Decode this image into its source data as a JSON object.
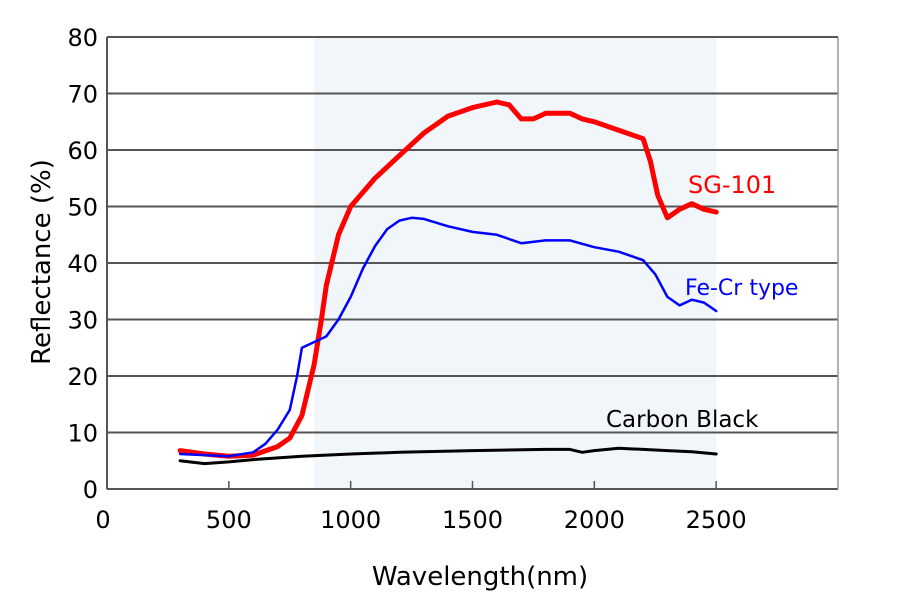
{
  "chart_data": {
    "type": "line",
    "title": "",
    "xlabel": "Wavelength(nm)",
    "ylabel": "Reflectance (%)",
    "xlim": [
      0,
      3000
    ],
    "ylim": [
      0,
      80
    ],
    "xticks": [
      0,
      500,
      1000,
      1500,
      2000,
      2500
    ],
    "yticks": [
      0,
      10,
      20,
      30,
      40,
      50,
      60,
      70,
      80
    ],
    "grid": "horizontal",
    "shaded_region": {
      "x": [
        850,
        2500
      ],
      "color": "#f1f6fb"
    },
    "series": [
      {
        "name": "SG-101",
        "color": "#ff0000",
        "x": [
          300,
          400,
          500,
          600,
          700,
          750,
          800,
          850,
          880,
          900,
          950,
          1000,
          1100,
          1200,
          1300,
          1400,
          1500,
          1600,
          1650,
          1700,
          1750,
          1800,
          1900,
          1950,
          2000,
          2100,
          2200,
          2230,
          2260,
          2300,
          2350,
          2400,
          2450,
          2500
        ],
        "y": [
          6.8,
          6.2,
          5.8,
          6,
          7.5,
          9,
          13,
          22,
          30,
          36,
          45,
          50,
          55,
          59,
          63,
          66,
          67.5,
          68.5,
          68,
          65.5,
          65.5,
          66.5,
          66.5,
          65.5,
          65,
          63.5,
          62,
          58,
          52,
          48,
          49.5,
          50.5,
          49.5,
          49
        ]
      },
      {
        "name": "Fe-Cr type",
        "color": "#0000ff",
        "x": [
          300,
          400,
          500,
          600,
          650,
          700,
          750,
          780,
          800,
          850,
          900,
          950,
          1000,
          1050,
          1100,
          1150,
          1200,
          1250,
          1300,
          1400,
          1500,
          1600,
          1700,
          1800,
          1900,
          2000,
          2100,
          2200,
          2250,
          2300,
          2350,
          2400,
          2450,
          2500
        ],
        "y": [
          6.2,
          6,
          5.8,
          6.5,
          8,
          10.5,
          14,
          20,
          25,
          26,
          27,
          30,
          34,
          39,
          43,
          46,
          47.5,
          48,
          47.8,
          46.5,
          45.5,
          45,
          43.5,
          44,
          44,
          42.8,
          42,
          40.5,
          38,
          34,
          32.5,
          33.5,
          33,
          31.5
        ]
      },
      {
        "name": "Carbon Black",
        "color": "#000000",
        "x": [
          300,
          400,
          500,
          600,
          800,
          1000,
          1200,
          1500,
          1800,
          1900,
          1950,
          2000,
          2100,
          2200,
          2300,
          2400,
          2500
        ],
        "y": [
          5,
          4.5,
          4.8,
          5.2,
          5.8,
          6.2,
          6.5,
          6.8,
          7,
          7,
          6.5,
          6.8,
          7.2,
          7,
          6.8,
          6.6,
          6.2
        ]
      }
    ]
  }
}
